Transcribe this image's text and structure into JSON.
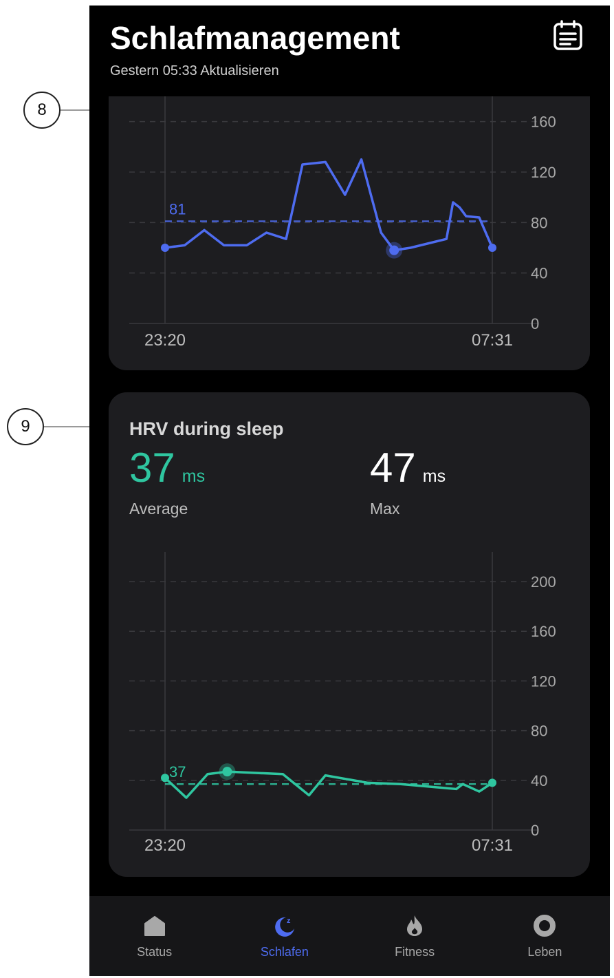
{
  "header": {
    "title": "Schlafmanagement",
    "subtitle": "Gestern 05:33 Aktualisieren",
    "calendar_icon": "calendar-list-icon"
  },
  "callouts": {
    "heart_rate": "8",
    "hrv": "9"
  },
  "heart_rate_card": {
    "average_label": "81",
    "accent_color": "#4e6cf0"
  },
  "hrv_card": {
    "title": "HRV during sleep",
    "average_value": "37",
    "average_unit": "ms",
    "average_label": "Average",
    "max_value": "47",
    "max_unit": "ms",
    "max_label": "Max",
    "average_marker": "37",
    "accent_color": "#2fc6a0"
  },
  "chart_data": [
    {
      "type": "line",
      "x_start_label": "23:20",
      "x_end_label": "07:31",
      "yticks": [
        "0",
        "40",
        "80",
        "120",
        "160"
      ],
      "ylim": [
        0,
        180
      ],
      "average": 81,
      "grid": true,
      "x_fraction": [
        0,
        0.06,
        0.12,
        0.18,
        0.25,
        0.31,
        0.37,
        0.42,
        0.49,
        0.55,
        0.6,
        0.66,
        0.7,
        0.75,
        0.86,
        0.88,
        0.9,
        0.92,
        0.96,
        1.0
      ],
      "values": [
        60,
        62,
        74,
        62,
        62,
        72,
        67,
        126,
        128,
        102,
        130,
        72,
        58,
        60,
        67,
        96,
        92,
        85,
        84,
        60
      ],
      "highlight_index": 12
    },
    {
      "type": "line",
      "x_start_label": "23:20",
      "x_end_label": "07:31",
      "yticks": [
        "0",
        "40",
        "80",
        "120",
        "160",
        "200"
      ],
      "ylim": [
        0,
        210
      ],
      "average": 37,
      "grid": true,
      "x_fraction": [
        0,
        0.065,
        0.13,
        0.19,
        0.36,
        0.44,
        0.49,
        0.62,
        0.72,
        0.89,
        0.91,
        0.96,
        1.0
      ],
      "values": [
        42,
        26,
        45,
        47,
        45,
        28,
        44,
        38,
        37,
        33,
        37,
        31,
        38
      ],
      "highlight_index": 3
    }
  ],
  "nav": {
    "items": [
      {
        "label": "Status",
        "icon": "home-icon"
      },
      {
        "label": "Schlafen",
        "icon": "sleep-moon-icon"
      },
      {
        "label": "Fitness",
        "icon": "flame-icon"
      },
      {
        "label": "Leben",
        "icon": "ring-icon"
      }
    ],
    "active_index": 1,
    "active_color": "#4e6cf0"
  }
}
